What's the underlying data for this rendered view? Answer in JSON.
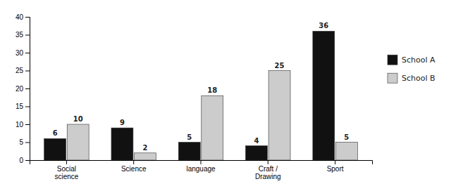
{
  "chart_data": {
    "type": "bar",
    "categories": [
      "Social\nscience",
      "Science",
      "language",
      "Craft /\nDrawing",
      "Sport"
    ],
    "series": [
      {
        "name": "School A",
        "color": "#111111",
        "values": [
          6,
          9,
          5,
          4,
          36
        ]
      },
      {
        "name": "School B",
        "color": "#cccccc",
        "values": [
          10,
          2,
          18,
          25,
          5
        ]
      }
    ],
    "ylim": [
      0,
      40
    ],
    "yticks": [
      0,
      5,
      10,
      15,
      20,
      25,
      30,
      35,
      40
    ],
    "grid": false,
    "legend": "right",
    "data_labels": true
  }
}
